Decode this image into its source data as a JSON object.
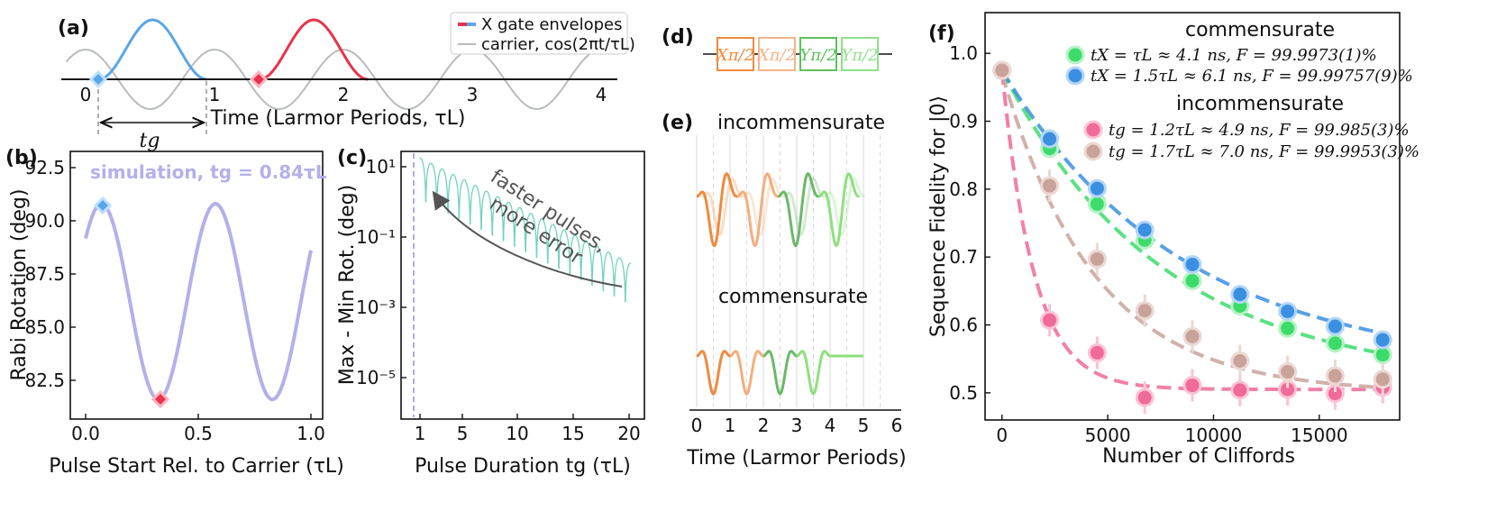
{
  "panels": {
    "a": {
      "label": "(a)",
      "legend": [
        "X gate envelopes",
        "carrier, cos(2πt/τL)"
      ],
      "xlabel": "Time (Larmor Periods, τL)",
      "xticks": [
        "0",
        "1",
        "2",
        "3",
        "4"
      ],
      "tg_label": "tg",
      "colors": {
        "env1": "#5aa6e8",
        "env2": "#e8334a",
        "carrier": "#b8bcbc"
      }
    },
    "b": {
      "label": "(b)",
      "annotation": "simulation, tg = 0.84τL",
      "ylabel": "Rabi Rotation (deg)",
      "xlabel": "Pulse Start Rel. to Carrier (τL)",
      "yticks": [
        "92.5",
        "90.0",
        "87.5",
        "85.0",
        "82.5"
      ],
      "xticks": [
        "0.0",
        "0.5",
        "1.0"
      ],
      "color": "#b3b0ea"
    },
    "c": {
      "label": "(c)",
      "ylabel": "Max - Min Rot. (deg)",
      "xlabel": "Pulse Duration tg (τL)",
      "yticks": [
        "10¹",
        "10⁻¹",
        "10⁻³",
        "10⁻⁵"
      ],
      "xticks": [
        "1",
        "5",
        "10",
        "15",
        "20"
      ],
      "annotation": [
        "faster pulses,",
        "more error"
      ],
      "color": "#6fd3bf"
    },
    "d": {
      "label": "(d)",
      "gates": [
        "Xπ/2",
        "Xπ/2",
        "Yπ/2",
        "Yπ/2"
      ]
    },
    "e": {
      "label": "(e)",
      "top": "incommensurate",
      "bottom": "commensurate",
      "xlabel": "Time (Larmor Periods)",
      "xticks": [
        "0",
        "1",
        "2",
        "3",
        "4",
        "5",
        "6"
      ]
    },
    "f": {
      "label": "(f)",
      "ylabel": "Sequence Fidelity for |0⟩",
      "xlabel": "Number of Cliffords",
      "yticks": [
        "1.0",
        "0.9",
        "0.8",
        "0.7",
        "0.6",
        "0.5"
      ],
      "xticks": [
        "0",
        "5000",
        "10000",
        "15000"
      ],
      "legend_head1": "commensurate",
      "legend_head2": "incommensurate",
      "legend": [
        "tX = τL ≈ 4.1 ns, F = 99.9973(1)%",
        "tX = 1.5τL ≈ 6.1 ns, F = 99.99757(9)%",
        "tg = 1.2τL ≈ 4.9 ns, F = 99.985(3)%",
        "tg = 1.7τL ≈ 7.0 ns, F = 99.9953(3)%"
      ]
    }
  },
  "chart_data": {
    "type": "scatter",
    "title": "",
    "xlabel": "Number of Cliffords",
    "ylabel": "Sequence Fidelity for |0⟩",
    "xlim": [
      -800,
      18800
    ],
    "ylim": [
      0.46,
      1.06
    ],
    "x": [
      0,
      2250,
      4500,
      6750,
      9000,
      11250,
      13500,
      15750,
      18000
    ],
    "series": [
      {
        "name": "tX = τL ≈ 4.1 ns, F = 99.9973(1)%",
        "color": "#3ddc6a",
        "values": [
          0.975,
          0.86,
          0.778,
          0.725,
          0.665,
          0.628,
          0.595,
          0.573,
          0.556
        ]
      },
      {
        "name": "tX = 1.5τL ≈ 6.1 ns, F = 99.99757(9)%",
        "color": "#3b8fe0",
        "values": [
          0.975,
          0.874,
          0.801,
          0.74,
          0.689,
          0.645,
          0.62,
          0.598,
          0.578
        ]
      },
      {
        "name": "tg = 1.2τL ≈ 4.9 ns, F = 99.985(3)%",
        "color": "#f06a9a",
        "values": [
          0.975,
          0.607,
          0.559,
          0.493,
          0.511,
          0.504,
          0.505,
          0.499,
          0.508
        ]
      },
      {
        "name": "tg = 1.7τL ≈ 7.0 ns, F = 99.9953(3)%",
        "color": "#c9a39a",
        "values": [
          0.975,
          0.805,
          0.697,
          0.621,
          0.583,
          0.547,
          0.531,
          0.525,
          0.52
        ]
      }
    ]
  }
}
